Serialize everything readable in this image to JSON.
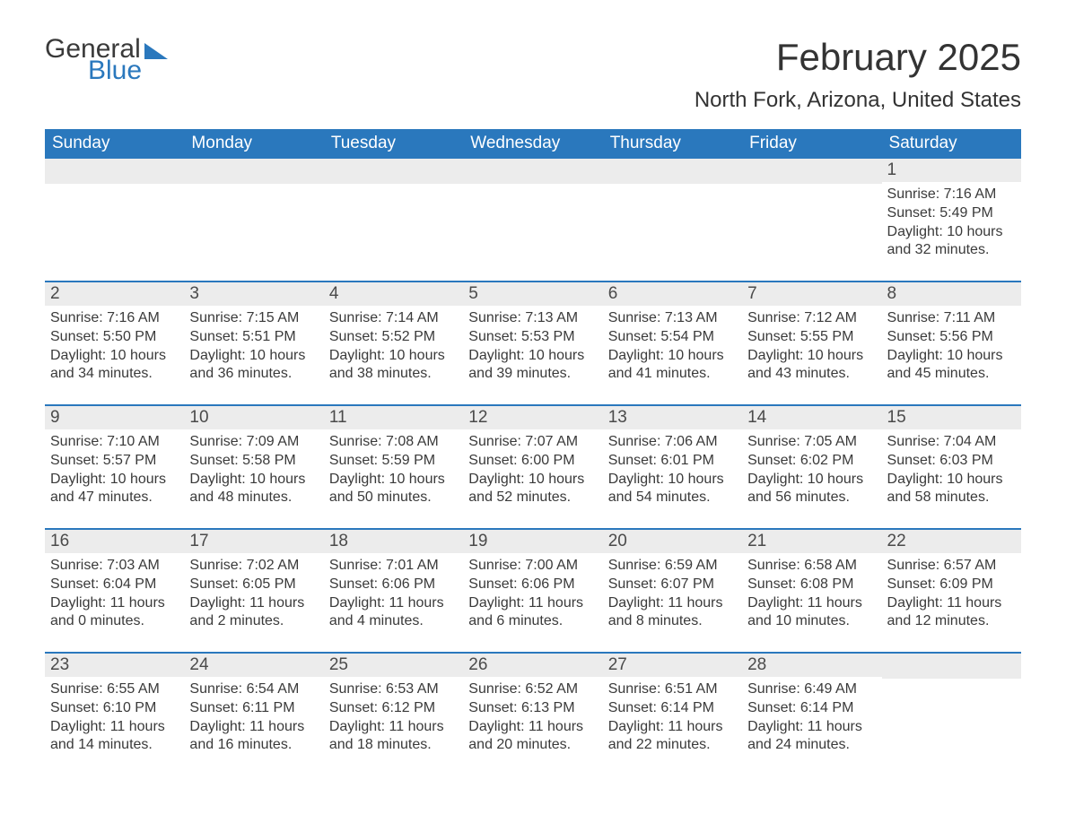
{
  "logo": {
    "part1": "General",
    "part2": "Blue"
  },
  "title": "February 2025",
  "location": "North Fork, Arizona, United States",
  "colors": {
    "header_bg": "#2a78bd",
    "header_text": "#ffffff",
    "daynum_bg": "#ececec",
    "week_divider": "#2a78bd",
    "body_text": "#3a3a3a",
    "page_bg": "#ffffff"
  },
  "days_of_week": [
    "Sunday",
    "Monday",
    "Tuesday",
    "Wednesday",
    "Thursday",
    "Friday",
    "Saturday"
  ],
  "weeks": [
    [
      {
        "n": "",
        "sunrise": "",
        "sunset": "",
        "daylight": ""
      },
      {
        "n": "",
        "sunrise": "",
        "sunset": "",
        "daylight": ""
      },
      {
        "n": "",
        "sunrise": "",
        "sunset": "",
        "daylight": ""
      },
      {
        "n": "",
        "sunrise": "",
        "sunset": "",
        "daylight": ""
      },
      {
        "n": "",
        "sunrise": "",
        "sunset": "",
        "daylight": ""
      },
      {
        "n": "",
        "sunrise": "",
        "sunset": "",
        "daylight": ""
      },
      {
        "n": "1",
        "sunrise": "Sunrise: 7:16 AM",
        "sunset": "Sunset: 5:49 PM",
        "daylight": "Daylight: 10 hours and 32 minutes."
      }
    ],
    [
      {
        "n": "2",
        "sunrise": "Sunrise: 7:16 AM",
        "sunset": "Sunset: 5:50 PM",
        "daylight": "Daylight: 10 hours and 34 minutes."
      },
      {
        "n": "3",
        "sunrise": "Sunrise: 7:15 AM",
        "sunset": "Sunset: 5:51 PM",
        "daylight": "Daylight: 10 hours and 36 minutes."
      },
      {
        "n": "4",
        "sunrise": "Sunrise: 7:14 AM",
        "sunset": "Sunset: 5:52 PM",
        "daylight": "Daylight: 10 hours and 38 minutes."
      },
      {
        "n": "5",
        "sunrise": "Sunrise: 7:13 AM",
        "sunset": "Sunset: 5:53 PM",
        "daylight": "Daylight: 10 hours and 39 minutes."
      },
      {
        "n": "6",
        "sunrise": "Sunrise: 7:13 AM",
        "sunset": "Sunset: 5:54 PM",
        "daylight": "Daylight: 10 hours and 41 minutes."
      },
      {
        "n": "7",
        "sunrise": "Sunrise: 7:12 AM",
        "sunset": "Sunset: 5:55 PM",
        "daylight": "Daylight: 10 hours and 43 minutes."
      },
      {
        "n": "8",
        "sunrise": "Sunrise: 7:11 AM",
        "sunset": "Sunset: 5:56 PM",
        "daylight": "Daylight: 10 hours and 45 minutes."
      }
    ],
    [
      {
        "n": "9",
        "sunrise": "Sunrise: 7:10 AM",
        "sunset": "Sunset: 5:57 PM",
        "daylight": "Daylight: 10 hours and 47 minutes."
      },
      {
        "n": "10",
        "sunrise": "Sunrise: 7:09 AM",
        "sunset": "Sunset: 5:58 PM",
        "daylight": "Daylight: 10 hours and 48 minutes."
      },
      {
        "n": "11",
        "sunrise": "Sunrise: 7:08 AM",
        "sunset": "Sunset: 5:59 PM",
        "daylight": "Daylight: 10 hours and 50 minutes."
      },
      {
        "n": "12",
        "sunrise": "Sunrise: 7:07 AM",
        "sunset": "Sunset: 6:00 PM",
        "daylight": "Daylight: 10 hours and 52 minutes."
      },
      {
        "n": "13",
        "sunrise": "Sunrise: 7:06 AM",
        "sunset": "Sunset: 6:01 PM",
        "daylight": "Daylight: 10 hours and 54 minutes."
      },
      {
        "n": "14",
        "sunrise": "Sunrise: 7:05 AM",
        "sunset": "Sunset: 6:02 PM",
        "daylight": "Daylight: 10 hours and 56 minutes."
      },
      {
        "n": "15",
        "sunrise": "Sunrise: 7:04 AM",
        "sunset": "Sunset: 6:03 PM",
        "daylight": "Daylight: 10 hours and 58 minutes."
      }
    ],
    [
      {
        "n": "16",
        "sunrise": "Sunrise: 7:03 AM",
        "sunset": "Sunset: 6:04 PM",
        "daylight": "Daylight: 11 hours and 0 minutes."
      },
      {
        "n": "17",
        "sunrise": "Sunrise: 7:02 AM",
        "sunset": "Sunset: 6:05 PM",
        "daylight": "Daylight: 11 hours and 2 minutes."
      },
      {
        "n": "18",
        "sunrise": "Sunrise: 7:01 AM",
        "sunset": "Sunset: 6:06 PM",
        "daylight": "Daylight: 11 hours and 4 minutes."
      },
      {
        "n": "19",
        "sunrise": "Sunrise: 7:00 AM",
        "sunset": "Sunset: 6:06 PM",
        "daylight": "Daylight: 11 hours and 6 minutes."
      },
      {
        "n": "20",
        "sunrise": "Sunrise: 6:59 AM",
        "sunset": "Sunset: 6:07 PM",
        "daylight": "Daylight: 11 hours and 8 minutes."
      },
      {
        "n": "21",
        "sunrise": "Sunrise: 6:58 AM",
        "sunset": "Sunset: 6:08 PM",
        "daylight": "Daylight: 11 hours and 10 minutes."
      },
      {
        "n": "22",
        "sunrise": "Sunrise: 6:57 AM",
        "sunset": "Sunset: 6:09 PM",
        "daylight": "Daylight: 11 hours and 12 minutes."
      }
    ],
    [
      {
        "n": "23",
        "sunrise": "Sunrise: 6:55 AM",
        "sunset": "Sunset: 6:10 PM",
        "daylight": "Daylight: 11 hours and 14 minutes."
      },
      {
        "n": "24",
        "sunrise": "Sunrise: 6:54 AM",
        "sunset": "Sunset: 6:11 PM",
        "daylight": "Daylight: 11 hours and 16 minutes."
      },
      {
        "n": "25",
        "sunrise": "Sunrise: 6:53 AM",
        "sunset": "Sunset: 6:12 PM",
        "daylight": "Daylight: 11 hours and 18 minutes."
      },
      {
        "n": "26",
        "sunrise": "Sunrise: 6:52 AM",
        "sunset": "Sunset: 6:13 PM",
        "daylight": "Daylight: 11 hours and 20 minutes."
      },
      {
        "n": "27",
        "sunrise": "Sunrise: 6:51 AM",
        "sunset": "Sunset: 6:14 PM",
        "daylight": "Daylight: 11 hours and 22 minutes."
      },
      {
        "n": "28",
        "sunrise": "Sunrise: 6:49 AM",
        "sunset": "Sunset: 6:14 PM",
        "daylight": "Daylight: 11 hours and 24 minutes."
      },
      {
        "n": "",
        "sunrise": "",
        "sunset": "",
        "daylight": ""
      }
    ]
  ]
}
